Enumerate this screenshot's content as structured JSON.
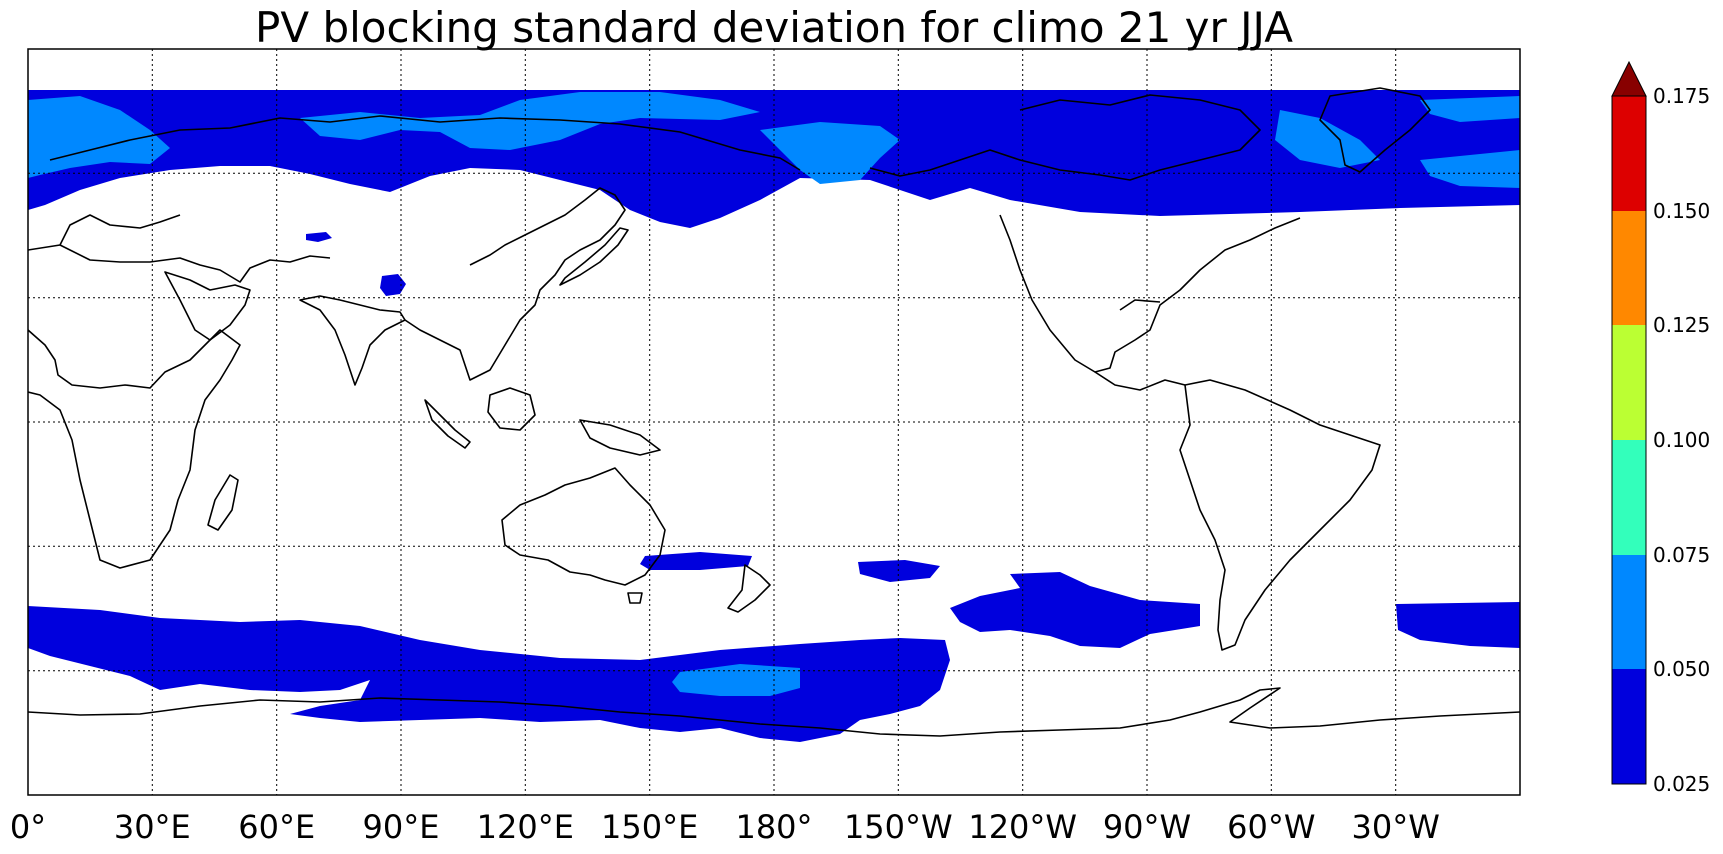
{
  "title": "PV blocking standard deviation for climo 21 yr JJA",
  "map": {
    "projection": "cylindrical",
    "lon_range": [
      0,
      360
    ],
    "lat_range": [
      -90,
      90
    ],
    "visible_lat_range": [
      -90,
      90
    ],
    "grid_lons": [
      30,
      60,
      90,
      120,
      150,
      180,
      210,
      240,
      270,
      300,
      330
    ],
    "grid_lats": [
      -60,
      -30,
      0,
      30,
      60
    ],
    "lon_labels": [
      {
        "lon": 0,
        "label": "0°"
      },
      {
        "lon": 30,
        "label": "30°E"
      },
      {
        "lon": 60,
        "label": "60°E"
      },
      {
        "lon": 90,
        "label": "90°E"
      },
      {
        "lon": 120,
        "label": "120°E"
      },
      {
        "lon": 150,
        "label": "150°E"
      },
      {
        "lon": 180,
        "label": "180°"
      },
      {
        "lon": 210,
        "label": "150°W"
      },
      {
        "lon": 240,
        "label": "120°W"
      },
      {
        "lon": 270,
        "label": "90°W"
      },
      {
        "lon": 300,
        "label": "60°W"
      },
      {
        "lon": 330,
        "label": "30°W"
      }
    ],
    "fill_colors": {
      "level_1": "#0000dd",
      "level_2": "#0088ff"
    }
  },
  "colorbar": {
    "levels": [
      "0.025",
      "0.050",
      "0.075",
      "0.100",
      "0.125",
      "0.150",
      "0.175"
    ],
    "colors": [
      "#0000dd",
      "#0088ff",
      "#33ffbb",
      "#bbff33",
      "#ff8800",
      "#dd0000"
    ],
    "extend_color": "#880000",
    "extend": "max"
  }
}
